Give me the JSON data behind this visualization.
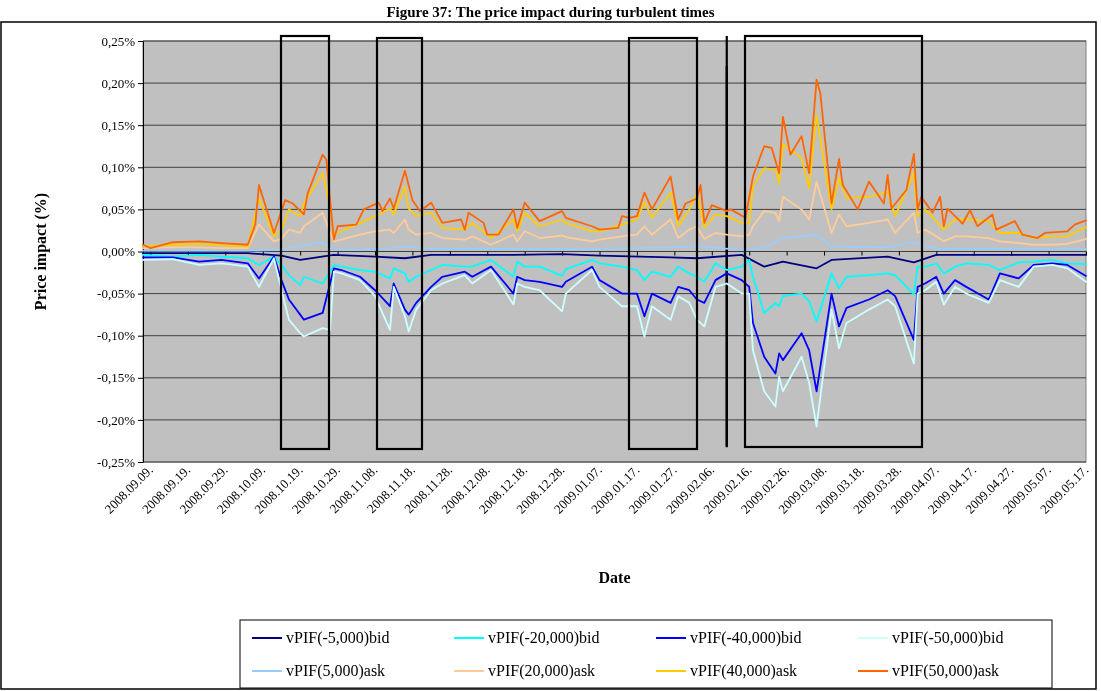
{
  "chart_data": {
    "type": "line",
    "title": "Figure 37: The price impact during turbulent times",
    "xlabel": "Date",
    "ylabel": "Price impact (%)",
    "x": [
      "2008-09-07",
      "2008-09-15",
      "2008-09-22",
      "2008-09-28",
      "2008-10-05",
      "2008-10-08",
      "2008-10-12",
      "2008-10-14",
      "2008-10-16",
      "2008-10-19",
      "2008-10-20",
      "2008-10-25",
      "2008-10-27",
      "2008-10-28",
      "2008-10-30",
      "2008-11-04",
      "2008-11-08",
      "2008-11-12",
      "2008-11-13",
      "2008-11-16",
      "2008-11-17",
      "2008-11-19",
      "2008-11-23",
      "2008-11-26",
      "2008-12-02",
      "2008-12-04",
      "2008-12-09",
      "2008-12-15",
      "2008-12-16",
      "2008-12-18",
      "2008-12-22",
      "2008-12-28",
      "2008-12-29",
      "2009-01-05",
      "2009-01-07",
      "2009-01-13",
      "2009-01-17",
      "2009-01-19",
      "2009-01-21",
      "2009-01-26",
      "2009-01-28",
      "2009-01-31",
      "2009-02-02",
      "2009-02-04",
      "2009-02-07",
      "2009-02-10",
      "2009-02-14",
      "2009-02-16",
      "2009-02-17",
      "2009-02-20",
      "2009-02-23",
      "2009-02-24",
      "2009-02-25",
      "2009-03-02",
      "2009-03-04",
      "2009-03-06",
      "2009-03-10",
      "2009-03-12",
      "2009-03-14",
      "2009-03-20",
      "2009-03-25",
      "2009-03-27",
      "2009-04-01",
      "2009-04-02",
      "2009-04-04",
      "2009-04-07",
      "2009-04-09",
      "2009-04-12",
      "2009-04-15",
      "2009-04-21",
      "2009-04-24",
      "2009-04-29",
      "2009-05-03",
      "2009-05-08",
      "2009-05-12",
      "2009-05-17"
    ],
    "series": [
      {
        "name": "vPIF(-5,000)bid",
        "color": "#000080",
        "x": [
          "2008-09-07",
          "2008-10-05",
          "2008-10-14",
          "2008-10-19",
          "2008-10-28",
          "2008-11-08",
          "2008-11-16",
          "2008-11-23",
          "2008-12-15",
          "2008-12-28",
          "2009-01-07",
          "2009-01-26",
          "2009-02-02",
          "2009-02-14",
          "2009-02-20",
          "2009-02-25",
          "2009-03-06",
          "2009-03-10",
          "2009-03-25",
          "2009-04-01",
          "2009-04-07",
          "2009-04-21",
          "2009-05-17"
        ],
        "values": [
          -0.002,
          -0.002,
          -0.005,
          -0.01,
          -0.004,
          -0.006,
          -0.008,
          -0.004,
          -0.004,
          -0.003,
          -0.005,
          -0.007,
          -0.008,
          -0.004,
          -0.018,
          -0.012,
          -0.02,
          -0.01,
          -0.006,
          -0.013,
          -0.004,
          -0.004,
          -0.004
        ]
      },
      {
        "name": "vPIF(-20,000)bid",
        "color": "#00ffff",
        "values": [
          -0.004,
          -0.006,
          -0.004,
          -0.006,
          -0.008,
          -0.016,
          -0.006,
          -0.016,
          -0.028,
          -0.04,
          -0.03,
          -0.038,
          -0.024,
          -0.016,
          -0.018,
          -0.022,
          -0.024,
          -0.032,
          -0.02,
          -0.026,
          -0.036,
          -0.03,
          -0.022,
          -0.016,
          -0.018,
          -0.018,
          -0.01,
          -0.03,
          -0.012,
          -0.018,
          -0.018,
          -0.029,
          -0.021,
          -0.01,
          -0.014,
          -0.018,
          -0.022,
          -0.034,
          -0.024,
          -0.03,
          -0.018,
          -0.026,
          -0.03,
          -0.036,
          -0.014,
          -0.022,
          -0.018,
          -0.01,
          -0.03,
          -0.073,
          -0.061,
          -0.065,
          -0.053,
          -0.05,
          -0.059,
          -0.083,
          -0.026,
          -0.044,
          -0.03,
          -0.028,
          -0.026,
          -0.028,
          -0.051,
          -0.018,
          -0.018,
          -0.014,
          -0.026,
          -0.018,
          -0.014,
          -0.016,
          -0.022,
          -0.013,
          -0.012,
          -0.01,
          -0.014,
          -0.015
        ]
      },
      {
        "name": "vPIF(-40,000)bid",
        "color": "#0000ff",
        "values": [
          -0.007,
          -0.007,
          -0.012,
          -0.01,
          -0.014,
          -0.032,
          -0.006,
          -0.034,
          -0.057,
          -0.075,
          -0.081,
          -0.073,
          -0.038,
          -0.02,
          -0.022,
          -0.03,
          -0.046,
          -0.065,
          -0.038,
          -0.069,
          -0.075,
          -0.061,
          -0.042,
          -0.03,
          -0.024,
          -0.03,
          -0.018,
          -0.05,
          -0.03,
          -0.034,
          -0.036,
          -0.042,
          -0.036,
          -0.018,
          -0.034,
          -0.05,
          -0.05,
          -0.077,
          -0.05,
          -0.061,
          -0.042,
          -0.046,
          -0.057,
          -0.061,
          -0.034,
          -0.026,
          -0.034,
          -0.042,
          -0.085,
          -0.125,
          -0.145,
          -0.121,
          -0.129,
          -0.097,
          -0.117,
          -0.166,
          -0.05,
          -0.089,
          -0.067,
          -0.057,
          -0.046,
          -0.053,
          -0.105,
          -0.042,
          -0.038,
          -0.03,
          -0.05,
          -0.034,
          -0.042,
          -0.057,
          -0.026,
          -0.032,
          -0.016,
          -0.014,
          -0.016,
          -0.029
        ]
      },
      {
        "name": "vPIF(-50,000)bid",
        "color": "#ccffff",
        "values": [
          -0.01,
          -0.009,
          -0.016,
          -0.014,
          -0.018,
          -0.042,
          -0.008,
          -0.046,
          -0.081,
          -0.097,
          -0.101,
          -0.091,
          -0.093,
          -0.024,
          -0.026,
          -0.034,
          -0.053,
          -0.093,
          -0.042,
          -0.077,
          -0.095,
          -0.069,
          -0.046,
          -0.038,
          -0.028,
          -0.038,
          -0.022,
          -0.063,
          -0.038,
          -0.042,
          -0.046,
          -0.071,
          -0.05,
          -0.022,
          -0.042,
          -0.065,
          -0.065,
          -0.101,
          -0.065,
          -0.081,
          -0.053,
          -0.061,
          -0.081,
          -0.089,
          -0.042,
          -0.038,
          -0.05,
          -0.05,
          -0.117,
          -0.166,
          -0.184,
          -0.149,
          -0.166,
          -0.125,
          -0.156,
          -0.208,
          -0.069,
          -0.115,
          -0.085,
          -0.069,
          -0.057,
          -0.065,
          -0.133,
          -0.05,
          -0.046,
          -0.036,
          -0.063,
          -0.042,
          -0.05,
          -0.061,
          -0.034,
          -0.042,
          -0.018,
          -0.016,
          -0.02,
          -0.036
        ]
      },
      {
        "name": "vPIF(5,000)ask",
        "color": "#99ccff",
        "x": [
          "2008-09-07",
          "2008-10-05",
          "2008-10-14",
          "2008-10-25",
          "2008-10-28",
          "2008-11-12",
          "2008-11-16",
          "2008-11-23",
          "2008-12-15",
          "2008-12-28",
          "2009-01-07",
          "2009-01-26",
          "2009-02-02",
          "2009-02-14",
          "2009-02-20",
          "2009-02-25",
          "2009-03-06",
          "2009-03-10",
          "2009-03-25",
          "2009-04-01",
          "2009-04-07",
          "2009-04-21",
          "2009-05-17"
        ],
        "values": [
          0.001,
          0.001,
          0.002,
          0.011,
          0.002,
          0.003,
          0.006,
          0.003,
          0.003,
          0.003,
          0.003,
          0.005,
          0.006,
          0.002,
          0.004,
          0.016,
          0.02,
          0.006,
          0.005,
          0.011,
          0.003,
          0.003,
          0.003
        ]
      },
      {
        "name": "vPIF(20,000)ask",
        "color": "#ffcc99",
        "values": [
          0.004,
          0.005,
          0.005,
          0.004,
          0.004,
          0.032,
          0.012,
          0.015,
          0.026,
          0.022,
          0.03,
          0.046,
          0.022,
          0.012,
          0.014,
          0.02,
          0.024,
          0.026,
          0.022,
          0.038,
          0.026,
          0.02,
          0.022,
          0.016,
          0.014,
          0.018,
          0.008,
          0.02,
          0.012,
          0.024,
          0.016,
          0.019,
          0.017,
          0.012,
          0.014,
          0.018,
          0.02,
          0.03,
          0.02,
          0.038,
          0.016,
          0.026,
          0.03,
          0.015,
          0.022,
          0.02,
          0.018,
          0.02,
          0.03,
          0.048,
          0.046,
          0.036,
          0.065,
          0.05,
          0.038,
          0.083,
          0.022,
          0.044,
          0.03,
          0.034,
          0.038,
          0.022,
          0.046,
          0.022,
          0.026,
          0.018,
          0.012,
          0.018,
          0.018,
          0.016,
          0.012,
          0.01,
          0.008,
          0.008,
          0.009,
          0.015
        ]
      },
      {
        "name": "vPIF(40,000)ask",
        "color": "#ffcc00",
        "values": [
          0.006,
          0.008,
          0.009,
          0.007,
          0.006,
          0.063,
          0.018,
          0.026,
          0.05,
          0.042,
          0.057,
          0.093,
          0.053,
          0.02,
          0.024,
          0.034,
          0.042,
          0.051,
          0.044,
          0.077,
          0.051,
          0.042,
          0.046,
          0.028,
          0.026,
          0.034,
          0.016,
          0.038,
          0.024,
          0.046,
          0.03,
          0.038,
          0.034,
          0.024,
          0.024,
          0.032,
          0.038,
          0.059,
          0.04,
          0.07,
          0.03,
          0.05,
          0.069,
          0.028,
          0.044,
          0.042,
          0.034,
          0.034,
          0.077,
          0.099,
          0.097,
          0.081,
          0.127,
          0.111,
          0.075,
          0.162,
          0.05,
          0.087,
          0.063,
          0.065,
          0.071,
          0.042,
          0.093,
          0.042,
          0.05,
          0.036,
          0.026,
          0.038,
          0.038,
          0.036,
          0.022,
          0.022,
          0.016,
          0.018,
          0.018,
          0.029
        ]
      },
      {
        "name": "vPIF(50,000)ask",
        "color": "#ff6600",
        "x": [
          "2008-09-07",
          "2008-09-09",
          "2008-09-15",
          "2008-09-22",
          "2008-09-28",
          "2008-10-05",
          "2008-10-07",
          "2008-10-08",
          "2008-10-12",
          "2008-10-15",
          "2008-10-17",
          "2008-10-20",
          "2008-10-21",
          "2008-10-25",
          "2008-10-26",
          "2008-10-28",
          "2008-10-29",
          "2008-11-03",
          "2008-11-05",
          "2008-11-09",
          "2008-11-10",
          "2008-11-12",
          "2008-11-13",
          "2008-11-16",
          "2008-11-18",
          "2008-11-20",
          "2008-11-23",
          "2008-11-26",
          "2008-12-01",
          "2008-12-02",
          "2008-12-03",
          "2008-12-07",
          "2008-12-08",
          "2008-12-11",
          "2008-12-15",
          "2008-12-16",
          "2008-12-18",
          "2008-12-22",
          "2008-12-28",
          "2008-12-29",
          "2009-01-05",
          "2009-01-07",
          "2009-01-12",
          "2009-01-13",
          "2009-01-15",
          "2009-01-17",
          "2009-01-19",
          "2009-01-21",
          "2009-01-26",
          "2009-01-28",
          "2009-01-30",
          "2009-02-02",
          "2009-02-03",
          "2009-02-04",
          "2009-02-06",
          "2009-02-10",
          "2009-02-11",
          "2009-02-15",
          "2009-02-17",
          "2009-02-20",
          "2009-02-22",
          "2009-02-24",
          "2009-02-25",
          "2009-02-27",
          "2009-03-02",
          "2009-03-04",
          "2009-03-06",
          "2009-03-07",
          "2009-03-10",
          "2009-03-12",
          "2009-03-13",
          "2009-03-17",
          "2009-03-20",
          "2009-03-24",
          "2009-03-25",
          "2009-03-26",
          "2009-03-30",
          "2009-04-01",
          "2009-04-02",
          "2009-04-03",
          "2009-04-06",
          "2009-04-08",
          "2009-04-09",
          "2009-04-10",
          "2009-04-14",
          "2009-04-16",
          "2009-04-18",
          "2009-04-22",
          "2009-04-23",
          "2009-04-28",
          "2009-04-30",
          "2009-05-04",
          "2009-05-06",
          "2009-05-12",
          "2009-05-14",
          "2009-05-17"
        ],
        "values": [
          0.008,
          0.004,
          0.011,
          0.012,
          0.01,
          0.008,
          0.032,
          0.079,
          0.022,
          0.061,
          0.057,
          0.044,
          0.069,
          0.115,
          0.109,
          0.014,
          0.03,
          0.032,
          0.05,
          0.058,
          0.048,
          0.063,
          0.051,
          0.096,
          0.061,
          0.048,
          0.058,
          0.034,
          0.038,
          0.026,
          0.046,
          0.034,
          0.02,
          0.02,
          0.05,
          0.028,
          0.058,
          0.036,
          0.048,
          0.04,
          0.03,
          0.026,
          0.028,
          0.042,
          0.04,
          0.042,
          0.07,
          0.05,
          0.089,
          0.038,
          0.057,
          0.063,
          0.079,
          0.034,
          0.055,
          0.048,
          0.05,
          0.04,
          0.089,
          0.125,
          0.123,
          0.093,
          0.16,
          0.115,
          0.137,
          0.093,
          0.204,
          0.188,
          0.057,
          0.11,
          0.079,
          0.05,
          0.083,
          0.057,
          0.091,
          0.051,
          0.073,
          0.116,
          0.05,
          0.065,
          0.046,
          0.065,
          0.03,
          0.051,
          0.033,
          0.049,
          0.03,
          0.044,
          0.026,
          0.036,
          0.02,
          0.016,
          0.022,
          0.024,
          0.032,
          0.037
        ]
      }
    ],
    "xlim": [
      "2008-09-07",
      "2009-05-17"
    ],
    "xticks": [
      {
        "value": "2008-09-09",
        "label": "2008.09.09."
      },
      {
        "value": "2008-09-19",
        "label": "2008.09.19."
      },
      {
        "value": "2008-09-29",
        "label": "2008.09.29."
      },
      {
        "value": "2008-10-09",
        "label": "2008.10.09."
      },
      {
        "value": "2008-10-19",
        "label": "2008.10.19."
      },
      {
        "value": "2008-10-29",
        "label": "2008.10.29."
      },
      {
        "value": "2008-11-08",
        "label": "2008.11.08."
      },
      {
        "value": "2008-11-18",
        "label": "2008.11.18."
      },
      {
        "value": "2008-11-28",
        "label": "2008.11.28."
      },
      {
        "value": "2008-12-08",
        "label": "2008.12.08."
      },
      {
        "value": "2008-12-18",
        "label": "2008.12.18."
      },
      {
        "value": "2008-12-28",
        "label": "2008.12.28."
      },
      {
        "value": "2009-01-07",
        "label": "2009.01.07."
      },
      {
        "value": "2009-01-17",
        "label": "2009.01.17."
      },
      {
        "value": "2009-01-27",
        "label": "2009.01.27."
      },
      {
        "value": "2009-02-06",
        "label": "2009.02.06."
      },
      {
        "value": "2009-02-16",
        "label": "2009.02.16."
      },
      {
        "value": "2009-02-26",
        "label": "2009.02.26."
      },
      {
        "value": "2009-03-08",
        "label": "2009.03.08."
      },
      {
        "value": "2009-03-18",
        "label": "2009.03.18."
      },
      {
        "value": "2009-03-28",
        "label": "2009.03.28."
      },
      {
        "value": "2009-04-07",
        "label": "2009.04.07."
      },
      {
        "value": "2009-04-17",
        "label": "2009.04.17."
      },
      {
        "value": "2009-04-27",
        "label": "2009.04.27."
      },
      {
        "value": "2009-05-07",
        "label": "2009.05.07."
      },
      {
        "value": "2009-05-17",
        "label": "2009.05.17."
      }
    ],
    "ylim": [
      -0.25,
      0.25
    ],
    "yticks": [
      {
        "value": -0.25,
        "label": "-0,25%"
      },
      {
        "value": -0.2,
        "label": "-0,20%"
      },
      {
        "value": -0.15,
        "label": "-0,15%"
      },
      {
        "value": -0.1,
        "label": "-0,10%"
      },
      {
        "value": -0.05,
        "label": "-0,05%"
      },
      {
        "value": 0,
        "label": "0,00%"
      },
      {
        "value": 0.05,
        "label": "0,05%"
      },
      {
        "value": 0.1,
        "label": "0,10%"
      },
      {
        "value": 0.15,
        "label": "0,15%"
      },
      {
        "value": 0.2,
        "label": "0,20%"
      },
      {
        "value": 0.25,
        "label": "0,25%"
      }
    ],
    "ref_lines": [
      {
        "axis": "x",
        "value": "2009-02-10",
        "color": "#000000"
      }
    ],
    "grid": "y",
    "legend": "bottom",
    "marker": "none",
    "line_style": "solid"
  }
}
